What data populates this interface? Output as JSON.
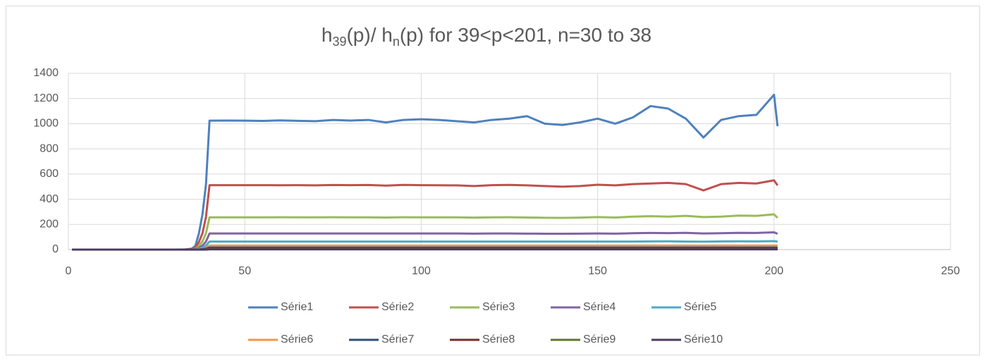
{
  "chart_data": {
    "type": "line",
    "title": {
      "parts": [
        "h",
        "39",
        "(p)/ h",
        "n",
        "(p) for 39<p<201, n=30 to 38"
      ],
      "subscript": [
        false,
        true,
        false,
        true,
        false
      ]
    },
    "x": [
      1,
      5,
      10,
      15,
      20,
      25,
      30,
      33,
      35,
      36,
      37,
      38,
      39,
      40,
      45,
      50,
      55,
      60,
      65,
      70,
      75,
      80,
      85,
      90,
      95,
      100,
      105,
      110,
      115,
      120,
      125,
      130,
      135,
      140,
      145,
      150,
      155,
      160,
      165,
      170,
      175,
      180,
      185,
      190,
      195,
      200,
      201
    ],
    "xlim": [
      0,
      250
    ],
    "xticks": [
      0,
      50,
      100,
      150,
      200,
      250
    ],
    "ylim": [
      0,
      1400
    ],
    "yticks": [
      0,
      200,
      400,
      600,
      800,
      1000,
      1200,
      1400
    ],
    "grid": true,
    "legend": "bottom",
    "series": [
      {
        "name": "Série1",
        "color": "#4f81bd",
        "values": [
          0,
          0,
          0,
          0,
          0,
          0,
          0,
          1,
          8,
          30,
          130,
          280,
          520,
          1024,
          1025,
          1024,
          1022,
          1026,
          1023,
          1020,
          1030,
          1025,
          1030,
          1010,
          1030,
          1035,
          1030,
          1020,
          1010,
          1030,
          1040,
          1060,
          1000,
          990,
          1010,
          1040,
          1000,
          1050,
          1140,
          1120,
          1040,
          890,
          1030,
          1060,
          1070,
          1230,
          980
        ]
      },
      {
        "name": "Série2",
        "color": "#c0504d",
        "values": [
          0,
          0,
          0,
          0,
          0,
          0,
          0,
          0,
          4,
          15,
          60,
          130,
          260,
          512,
          512,
          512,
          512,
          511,
          512,
          510,
          513,
          512,
          513,
          508,
          514,
          512,
          511,
          510,
          505,
          512,
          514,
          510,
          505,
          500,
          505,
          515,
          510,
          520,
          525,
          530,
          520,
          470,
          520,
          530,
          525,
          550,
          510
        ]
      },
      {
        "name": "Série3",
        "color": "#9bbb59",
        "values": [
          0,
          0,
          0,
          0,
          0,
          0,
          0,
          0,
          1,
          6,
          28,
          65,
          130,
          256,
          256,
          256,
          256,
          257,
          256,
          256,
          257,
          256,
          256,
          255,
          257,
          256,
          256,
          256,
          254,
          256,
          257,
          255,
          253,
          252,
          254,
          258,
          255,
          262,
          265,
          262,
          268,
          258,
          262,
          270,
          268,
          280,
          252
        ]
      },
      {
        "name": "Série4",
        "color": "#8064a2",
        "values": [
          0,
          0,
          0,
          0,
          0,
          0,
          0,
          0,
          0,
          3,
          14,
          32,
          64,
          128,
          128,
          128,
          128,
          128,
          128,
          128,
          128,
          128,
          128,
          128,
          128,
          128,
          128,
          128,
          127,
          128,
          128,
          127,
          126,
          126,
          127,
          128,
          127,
          130,
          132,
          131,
          133,
          128,
          130,
          133,
          132,
          137,
          125
        ]
      },
      {
        "name": "Série5",
        "color": "#4bacc6",
        "values": [
          0,
          0,
          0,
          0,
          0,
          0,
          0,
          0,
          0,
          0,
          7,
          16,
          32,
          64,
          64,
          64,
          64,
          64,
          64,
          64,
          64,
          64,
          64,
          64,
          64,
          64,
          64,
          64,
          64,
          64,
          64,
          64,
          64,
          64,
          64,
          64,
          64,
          64,
          65,
          66,
          64,
          63,
          65,
          66,
          65,
          67,
          64
        ]
      },
      {
        "name": "Série6",
        "color": "#f79646",
        "values": [
          0,
          0,
          0,
          0,
          0,
          0,
          0,
          0,
          0,
          0,
          0,
          8,
          16,
          32,
          32,
          32,
          32,
          32,
          32,
          32,
          32,
          32,
          32,
          32,
          32,
          32,
          32,
          32,
          32,
          32,
          32,
          32,
          32,
          32,
          32,
          32,
          32,
          32,
          32,
          32,
          32,
          32,
          32,
          32,
          32,
          32,
          32
        ]
      },
      {
        "name": "Série7",
        "color": "#2c4d75",
        "values": [
          0,
          0,
          0,
          0,
          0,
          0,
          0,
          0,
          0,
          0,
          0,
          4,
          8,
          16,
          16,
          16,
          16,
          16,
          16,
          16,
          16,
          16,
          16,
          16,
          16,
          16,
          16,
          16,
          16,
          16,
          16,
          16,
          16,
          16,
          16,
          16,
          16,
          16,
          16,
          16,
          16,
          16,
          16,
          16,
          16,
          16,
          16
        ]
      },
      {
        "name": "Série8",
        "color": "#772c2a",
        "values": [
          0,
          0,
          0,
          0,
          0,
          0,
          0,
          0,
          0,
          0,
          0,
          0,
          4,
          8,
          8,
          8,
          8,
          8,
          8,
          8,
          8,
          8,
          8,
          8,
          8,
          8,
          8,
          8,
          8,
          8,
          8,
          8,
          8,
          8,
          8,
          8,
          8,
          8,
          8,
          8,
          8,
          8,
          8,
          8,
          8,
          8,
          8
        ]
      },
      {
        "name": "Série9",
        "color": "#5f7530",
        "values": [
          0,
          0,
          0,
          0,
          0,
          0,
          0,
          0,
          0,
          0,
          0,
          0,
          2,
          4,
          4,
          4,
          4,
          4,
          4,
          4,
          4,
          4,
          4,
          4,
          4,
          4,
          4,
          4,
          4,
          4,
          4,
          4,
          4,
          4,
          4,
          4,
          4,
          4,
          4,
          4,
          4,
          4,
          4,
          4,
          4,
          4,
          4
        ]
      },
      {
        "name": "Série10",
        "color": "#4d3b62",
        "values": [
          0,
          0,
          0,
          0,
          0,
          0,
          0,
          0,
          0,
          0,
          0,
          0,
          0,
          2,
          2,
          2,
          2,
          2,
          2,
          2,
          2,
          2,
          2,
          2,
          2,
          2,
          2,
          2,
          2,
          2,
          2,
          2,
          2,
          2,
          2,
          2,
          2,
          2,
          2,
          2,
          2,
          2,
          2,
          2,
          2,
          2,
          2
        ]
      }
    ]
  }
}
